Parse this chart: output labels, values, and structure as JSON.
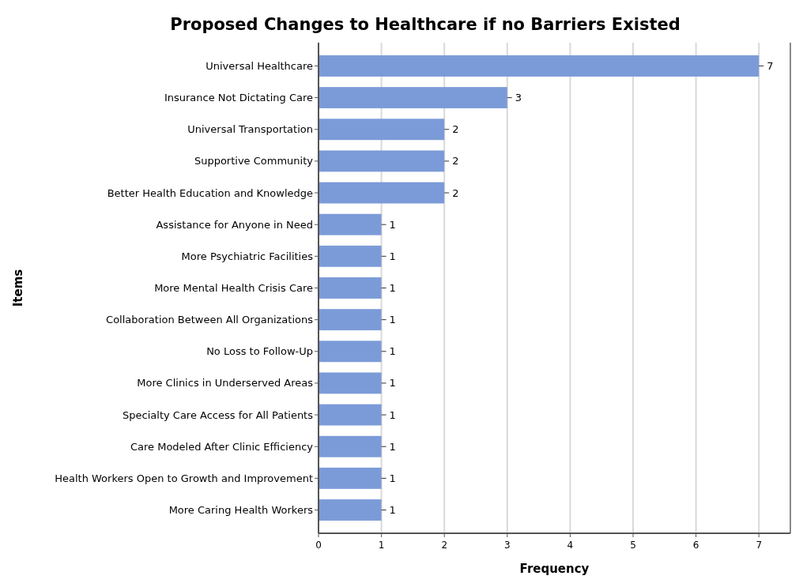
{
  "chart_data": {
    "type": "bar",
    "orientation": "horizontal",
    "title": "Proposed Changes to Healthcare if no Barriers Existed",
    "xlabel": "Frequency",
    "ylabel": "Items",
    "categories": [
      "Universal Healthcare",
      "Insurance Not Dictating Care",
      "Universal Transportation",
      "Supportive Community",
      "Better Health Education and Knowledge",
      "Assistance for Anyone in Need",
      "More Psychiatric Facilities",
      "More Mental Health Crisis Care",
      "Collaboration Between All Organizations",
      "No Loss to Follow-Up",
      "More Clinics in Underserved Areas",
      "Specialty Care Access for All Patients",
      "Care Modeled After Clinic Efficiency",
      "Health Workers Open to Growth and Improvement",
      "More Caring Health Workers"
    ],
    "values": [
      7,
      3,
      2,
      2,
      2,
      1,
      1,
      1,
      1,
      1,
      1,
      1,
      1,
      1,
      1
    ],
    "color": "#7b9bd8",
    "xlim": [
      0,
      7.5
    ],
    "xticks": [
      0,
      1,
      2,
      3,
      4,
      5,
      6,
      7
    ],
    "grid": "x",
    "data_labels": true
  }
}
